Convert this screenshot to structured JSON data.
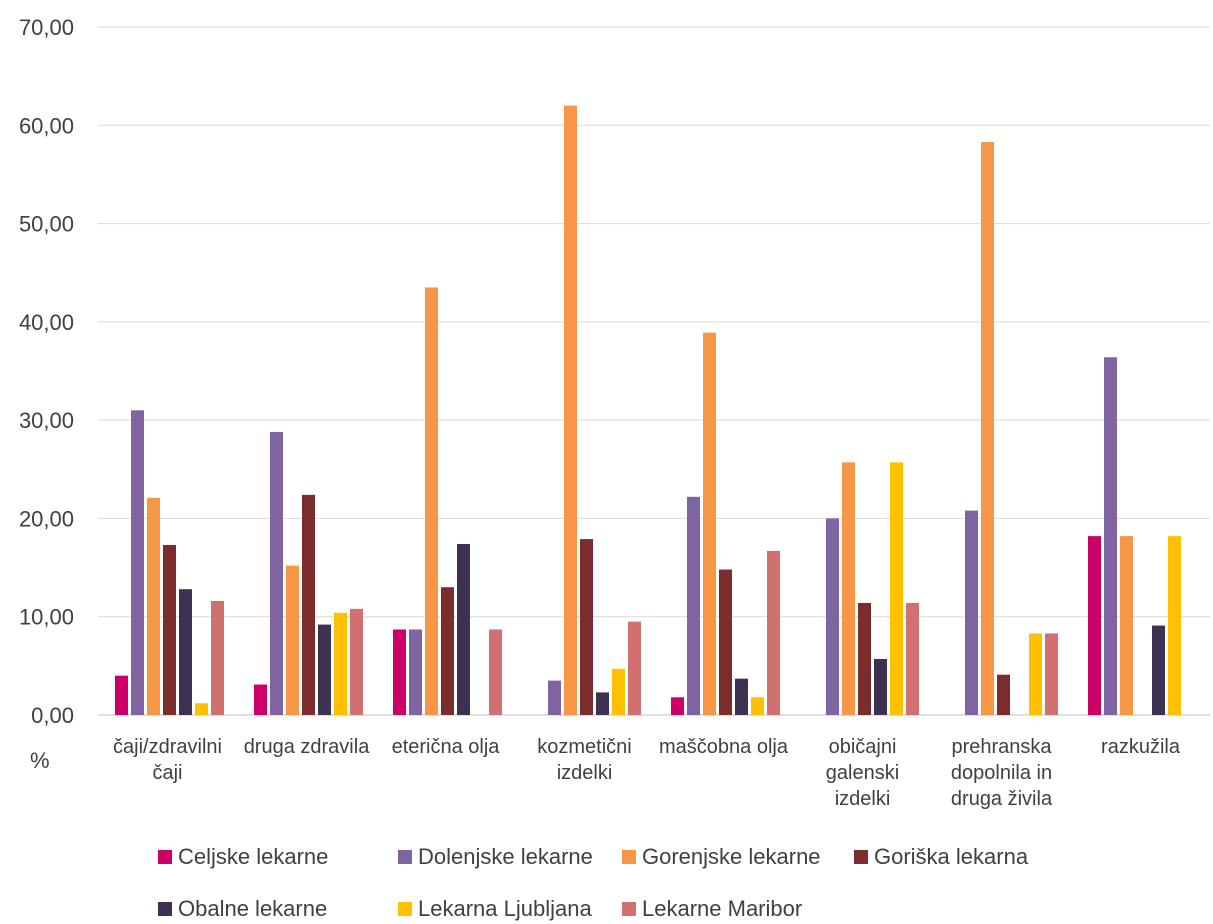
{
  "chart_data": {
    "type": "bar",
    "categories": [
      [
        "čaji/zdravilni",
        "čaji"
      ],
      [
        "druga zdravila"
      ],
      [
        "eterična olja"
      ],
      [
        "kozmetični",
        "izdelki"
      ],
      [
        "maščobna olja"
      ],
      [
        "običajni",
        "galenski",
        "izdelki"
      ],
      [
        "prehranska",
        "dopolnila in",
        "druga živila"
      ],
      [
        "razkužila"
      ]
    ],
    "series": [
      {
        "name": "Celjske lekarne",
        "color": "#CC0066",
        "values": [
          4.0,
          3.1,
          8.7,
          0,
          1.8,
          0,
          0,
          18.2
        ]
      },
      {
        "name": "Dolenjske lekarne",
        "color": "#8064A2",
        "values": [
          31.0,
          28.8,
          8.7,
          3.5,
          22.2,
          20.0,
          20.8,
          36.4
        ]
      },
      {
        "name": "Gorenjske lekarne",
        "color": "#F79646",
        "values": [
          22.1,
          15.2,
          43.5,
          62.0,
          38.9,
          25.7,
          58.3,
          18.2
        ]
      },
      {
        "name": "Goriška lekarna",
        "color": "#7B2C2C",
        "values": [
          17.3,
          22.4,
          13.0,
          17.9,
          14.8,
          11.4,
          4.1,
          0
        ]
      },
      {
        "name": "Obalne lekarne",
        "color": "#3F3151",
        "values": [
          12.8,
          9.2,
          17.4,
          2.3,
          3.7,
          5.7,
          0,
          9.1
        ]
      },
      {
        "name": "Lekarna Ljubljana",
        "color": "#FFC000",
        "values": [
          1.2,
          10.4,
          0,
          4.7,
          1.8,
          25.7,
          8.3,
          18.2
        ]
      },
      {
        "name": "Lekarne Maribor",
        "color": "#D07070",
        "values": [
          11.6,
          10.8,
          8.7,
          9.5,
          16.7,
          11.4,
          8.3,
          0
        ]
      }
    ],
    "y_ticks": [
      "0,00",
      "10,00",
      "20,00",
      "30,00",
      "40,00",
      "50,00",
      "60,00",
      "70,00"
    ],
    "ylim": [
      0,
      70
    ],
    "ylabel": "%",
    "grid": true,
    "legend_position": "bottom"
  }
}
